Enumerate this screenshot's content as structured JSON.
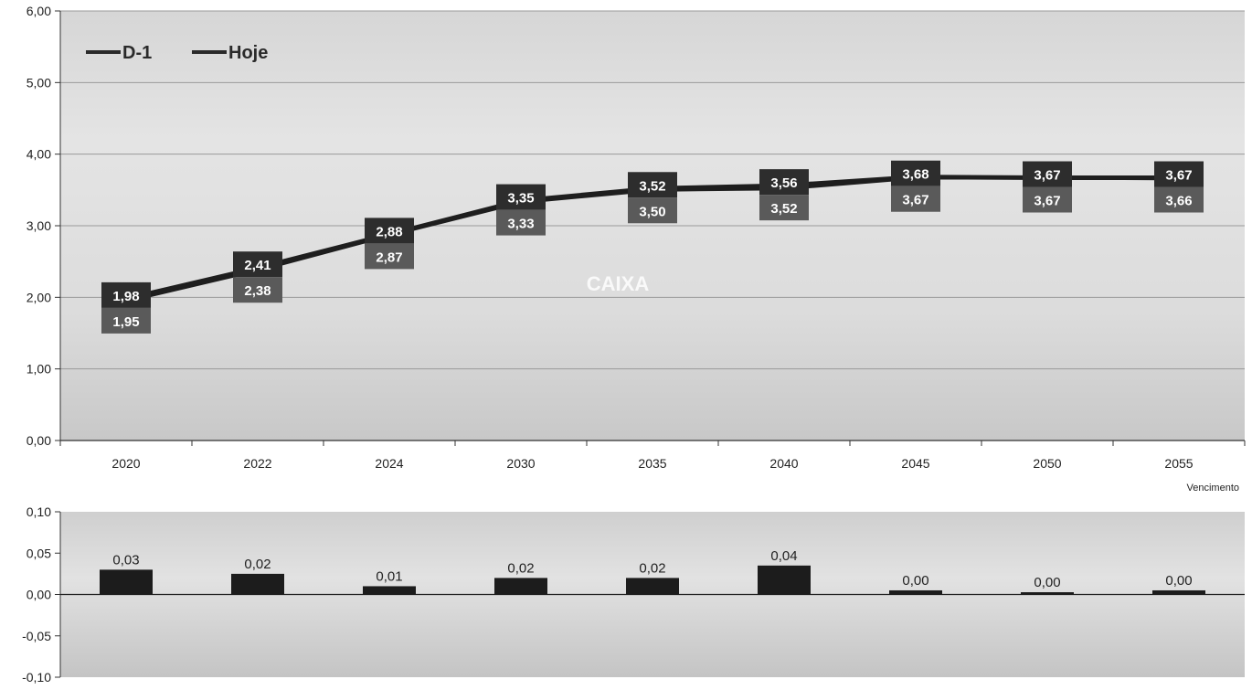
{
  "chart_data": [
    {
      "type": "line",
      "categories": [
        "2020",
        "2022",
        "2024",
        "2030",
        "2035",
        "2040",
        "2045",
        "2050",
        "2055"
      ],
      "series": [
        {
          "name": "D-1",
          "values": [
            1.95,
            2.38,
            2.87,
            3.33,
            3.5,
            3.52,
            3.67,
            3.67,
            3.66
          ],
          "labels": [
            "1,95",
            "2,38",
            "2,87",
            "3,33",
            "3,50",
            "3,52",
            "3,67",
            "3,67",
            "3,66"
          ]
        },
        {
          "name": "Hoje",
          "values": [
            1.98,
            2.41,
            2.88,
            3.35,
            3.52,
            3.56,
            3.68,
            3.67,
            3.67
          ],
          "labels": [
            "1,98",
            "2,41",
            "2,88",
            "3,35",
            "3,52",
            "3,56",
            "3,68",
            "3,67",
            "3,67"
          ]
        }
      ],
      "ylim": [
        0,
        6
      ],
      "yticks": [
        "0,00",
        "1,00",
        "2,00",
        "3,00",
        "4,00",
        "5,00",
        "6,00"
      ],
      "xlabel": "Vencimento",
      "legend": "top-left",
      "watermark": "CAIXA",
      "colors": {
        "line": "#1e1e1e",
        "label_box": "#2d2d2d",
        "label_box_alt": "#5a5a5a"
      }
    },
    {
      "type": "bar",
      "categories": [
        "2020",
        "2022",
        "2024",
        "2030",
        "2035",
        "2040",
        "2045",
        "2050",
        "2055"
      ],
      "values": [
        0.03,
        0.025,
        0.01,
        0.02,
        0.02,
        0.035,
        0.005,
        0.0,
        0.005
      ],
      "labels": [
        "0,03",
        "0,02",
        "0,01",
        "0,02",
        "0,02",
        "0,04",
        "0,00",
        "0,00",
        "0,00"
      ],
      "ylim": [
        -0.1,
        0.1
      ],
      "yticks": [
        "-0,10",
        "-0,05",
        "0,00",
        "0,05",
        "0,10"
      ],
      "colors": {
        "bar": "#1c1c1c"
      }
    }
  ]
}
